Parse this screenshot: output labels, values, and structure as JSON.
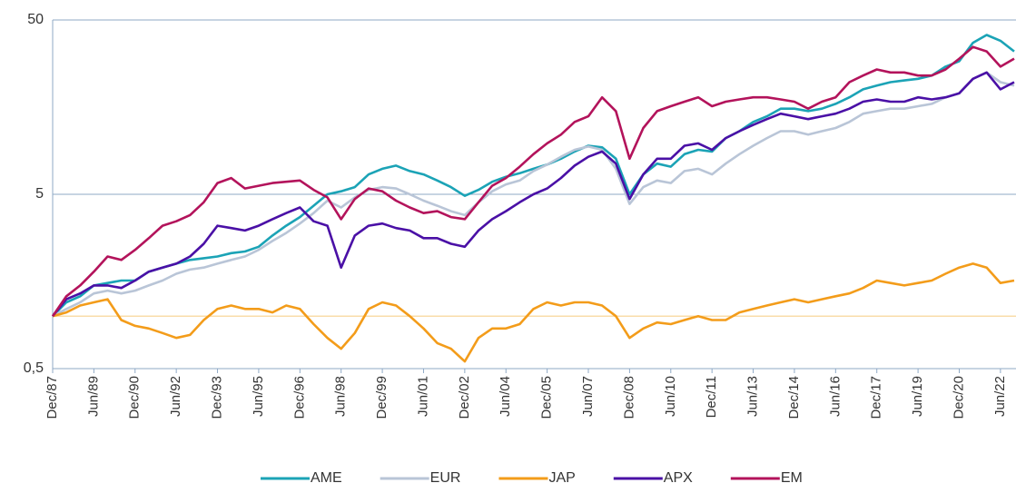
{
  "chart_data": {
    "type": "line",
    "log_scale": true,
    "grid": true,
    "categories": [
      "Dec/87",
      null,
      null,
      "Jun/89",
      null,
      null,
      "Dec/90",
      null,
      null,
      "Jun/92",
      null,
      null,
      "Dec/93",
      null,
      null,
      "Jun/95",
      null,
      null,
      "Dec/96",
      null,
      null,
      "Jun/98",
      null,
      null,
      "Dec/99",
      null,
      null,
      "Jun/01",
      null,
      null,
      "Dec/02",
      null,
      null,
      "Jun/04",
      null,
      null,
      "Dec/05",
      null,
      null,
      "Jun/07",
      null,
      null,
      "Dec/08",
      null,
      null,
      "Jun/10",
      null,
      null,
      "Dec/11",
      null,
      null,
      "Jun/13",
      null,
      null,
      "Dec/14",
      null,
      null,
      "Jun/16",
      null,
      null,
      "Dec/17",
      null,
      null,
      "Jun/19",
      null,
      null,
      "Dec/20",
      null,
      null,
      "Jun/22",
      null
    ],
    "ylim": [
      0.5,
      50
    ],
    "yticks": [
      {
        "value": 0.5,
        "label": "0,5"
      },
      5,
      50
    ],
    "reference_line": {
      "value": 1,
      "color": "#f9dcaa"
    },
    "legend": "bottom",
    "series": [
      {
        "name": "AME",
        "color": "#1ba3b6",
        "values": [
          1.0,
          1.2,
          1.3,
          1.5,
          1.55,
          1.6,
          1.6,
          1.8,
          1.9,
          2.0,
          2.1,
          2.15,
          2.2,
          2.3,
          2.35,
          2.5,
          2.9,
          3.3,
          3.7,
          4.3,
          5.0,
          5.2,
          5.5,
          6.5,
          7.0,
          7.3,
          6.8,
          6.5,
          6.0,
          5.5,
          4.9,
          5.3,
          5.9,
          6.3,
          6.6,
          7.0,
          7.4,
          8.0,
          8.8,
          9.5,
          9.3,
          8.0,
          5.0,
          6.5,
          7.5,
          7.2,
          8.5,
          9.0,
          8.8,
          10.5,
          11.5,
          13,
          14,
          15.5,
          15.5,
          15,
          15.5,
          16.5,
          18,
          20,
          21,
          22,
          22.5,
          23,
          24,
          27,
          29,
          37,
          41,
          38,
          33
        ]
      },
      {
        "name": "EUR",
        "color": "#b9c5d7",
        "values": [
          1.0,
          1.1,
          1.2,
          1.35,
          1.4,
          1.35,
          1.4,
          1.5,
          1.6,
          1.75,
          1.85,
          1.9,
          2.0,
          2.1,
          2.2,
          2.4,
          2.7,
          3.0,
          3.4,
          3.9,
          4.6,
          4.2,
          4.8,
          5.3,
          5.5,
          5.4,
          5.0,
          4.6,
          4.3,
          4.0,
          3.8,
          4.5,
          5.2,
          5.7,
          6.0,
          6.8,
          7.4,
          8.2,
          9.0,
          9.4,
          9.0,
          7.0,
          4.4,
          5.5,
          6.0,
          5.8,
          6.8,
          7.0,
          6.5,
          7.5,
          8.5,
          9.5,
          10.5,
          11.5,
          11.5,
          11,
          11.5,
          12,
          13,
          14.5,
          15,
          15.5,
          15.5,
          16,
          16.5,
          18,
          19,
          23,
          25,
          22,
          21
        ]
      },
      {
        "name": "JAP",
        "color": "#f39c1a",
        "values": [
          1.0,
          1.05,
          1.15,
          1.2,
          1.25,
          0.95,
          0.88,
          0.85,
          0.8,
          0.75,
          0.78,
          0.95,
          1.1,
          1.15,
          1.1,
          1.1,
          1.05,
          1.15,
          1.1,
          0.9,
          0.75,
          0.65,
          0.8,
          1.1,
          1.2,
          1.15,
          1.0,
          0.85,
          0.7,
          0.65,
          0.55,
          0.75,
          0.85,
          0.85,
          0.9,
          1.1,
          1.2,
          1.15,
          1.2,
          1.2,
          1.15,
          1.0,
          0.75,
          0.85,
          0.92,
          0.9,
          0.95,
          1.0,
          0.95,
          0.95,
          1.05,
          1.1,
          1.15,
          1.2,
          1.25,
          1.2,
          1.25,
          1.3,
          1.35,
          1.45,
          1.6,
          1.55,
          1.5,
          1.55,
          1.6,
          1.75,
          1.9,
          2.0,
          1.9,
          1.55,
          1.6
        ]
      },
      {
        "name": "APX",
        "color": "#4a10a6",
        "values": [
          1.0,
          1.25,
          1.35,
          1.5,
          1.5,
          1.45,
          1.6,
          1.8,
          1.9,
          2.0,
          2.2,
          2.6,
          3.3,
          3.2,
          3.1,
          3.3,
          3.6,
          3.9,
          4.2,
          3.5,
          3.3,
          1.9,
          2.9,
          3.3,
          3.4,
          3.2,
          3.1,
          2.8,
          2.8,
          2.6,
          2.5,
          3.1,
          3.6,
          4.0,
          4.5,
          5.0,
          5.4,
          6.2,
          7.3,
          8.2,
          8.8,
          7.5,
          4.7,
          6.5,
          8.0,
          8.0,
          9.5,
          9.8,
          9.0,
          10.5,
          11.5,
          12.5,
          13.5,
          14.5,
          14,
          13.5,
          14,
          14.5,
          15.5,
          17,
          17.5,
          17,
          17,
          18,
          17.5,
          18,
          19,
          23,
          25,
          20,
          22
        ]
      },
      {
        "name": "EM",
        "color": "#b3135b",
        "values": [
          1.0,
          1.3,
          1.5,
          1.8,
          2.2,
          2.1,
          2.4,
          2.8,
          3.3,
          3.5,
          3.8,
          4.5,
          5.8,
          6.2,
          5.4,
          5.6,
          5.8,
          5.9,
          6.0,
          5.3,
          4.8,
          3.6,
          4.7,
          5.4,
          5.2,
          4.6,
          4.2,
          3.9,
          4.0,
          3.7,
          3.6,
          4.5,
          5.6,
          6.2,
          7.2,
          8.5,
          9.8,
          11,
          13,
          14,
          18,
          15,
          8,
          12,
          15,
          16,
          17,
          18,
          16,
          17,
          17.5,
          18,
          18,
          17.5,
          17,
          15.5,
          17,
          18,
          22,
          24,
          26,
          25,
          25,
          24,
          24,
          26,
          30,
          35,
          33,
          27,
          30
        ]
      }
    ]
  }
}
